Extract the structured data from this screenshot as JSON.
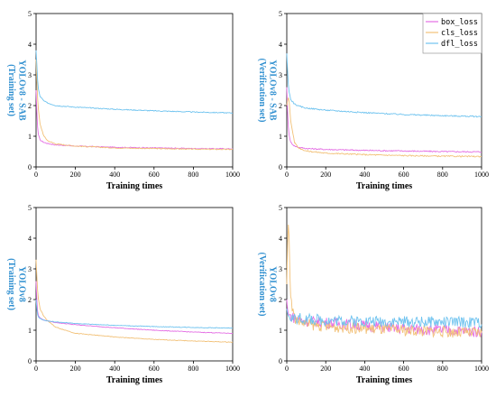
{
  "colors": {
    "box_loss": "#e46fe4",
    "cls_loss": "#f2c178",
    "dfl_loss": "#6fc3ef",
    "ylabel": "#2f8fd0"
  },
  "legend": [
    "box_loss",
    "cls_loss",
    "dfl_loss"
  ],
  "chart_data": [
    {
      "type": "line",
      "xlabel": "Training times",
      "ylabel_lines": [
        "YOLOv8 - SAB",
        "(Training set)"
      ],
      "xlim": [
        0,
        1000
      ],
      "ylim": [
        0,
        5
      ],
      "xticks": [
        0,
        200,
        400,
        600,
        800,
        1000
      ],
      "yticks": [
        0,
        1,
        2,
        3,
        4,
        5
      ],
      "noise": 0.015,
      "series": [
        {
          "name": "box_loss",
          "x": [
            0,
            5,
            10,
            20,
            40,
            60,
            100,
            200,
            400,
            600,
            800,
            1000
          ],
          "y": [
            2.5,
            1.6,
            1.1,
            0.88,
            0.8,
            0.76,
            0.72,
            0.68,
            0.64,
            0.62,
            0.6,
            0.59
          ]
        },
        {
          "name": "cls_loss",
          "x": [
            0,
            5,
            10,
            20,
            40,
            60,
            100,
            200,
            400,
            600,
            800,
            1000
          ],
          "y": [
            3.5,
            2.6,
            2.0,
            1.4,
            1.0,
            0.85,
            0.75,
            0.68,
            0.62,
            0.6,
            0.58,
            0.57
          ]
        },
        {
          "name": "dfl_loss",
          "x": [
            0,
            5,
            10,
            20,
            40,
            60,
            100,
            200,
            400,
            600,
            800,
            1000
          ],
          "y": [
            3.8,
            3.2,
            2.6,
            2.3,
            2.15,
            2.08,
            2.0,
            1.95,
            1.88,
            1.83,
            1.79,
            1.76
          ]
        }
      ]
    },
    {
      "type": "line",
      "xlabel": "Training times",
      "ylabel_lines": [
        "YOLOv8 - SAB",
        "(Verification set)"
      ],
      "xlim": [
        0,
        1000
      ],
      "ylim": [
        0,
        5
      ],
      "xticks": [
        0,
        200,
        400,
        600,
        800,
        1000
      ],
      "yticks": [
        0,
        1,
        2,
        3,
        4,
        5
      ],
      "noise": 0.02,
      "series": [
        {
          "name": "box_loss",
          "x": [
            0,
            5,
            10,
            20,
            40,
            60,
            100,
            200,
            400,
            600,
            800,
            1000
          ],
          "y": [
            2.6,
            1.6,
            1.1,
            0.8,
            0.68,
            0.64,
            0.6,
            0.57,
            0.54,
            0.52,
            0.5,
            0.49
          ]
        },
        {
          "name": "cls_loss",
          "x": [
            0,
            5,
            10,
            20,
            40,
            60,
            100,
            200,
            400,
            600,
            800,
            1000
          ],
          "y": [
            2.0,
            2.2,
            2.3,
            1.5,
            0.8,
            0.62,
            0.52,
            0.45,
            0.4,
            0.37,
            0.35,
            0.34
          ]
        },
        {
          "name": "dfl_loss",
          "x": [
            0,
            5,
            10,
            20,
            40,
            60,
            100,
            200,
            400,
            600,
            800,
            1000
          ],
          "y": [
            3.7,
            3.0,
            2.5,
            2.2,
            2.05,
            1.98,
            1.92,
            1.85,
            1.77,
            1.71,
            1.67,
            1.64
          ]
        }
      ]
    },
    {
      "type": "line",
      "xlabel": "Training times",
      "ylabel_lines": [
        "YOLOv8",
        "(Training set)"
      ],
      "xlim": [
        0,
        1000
      ],
      "ylim": [
        0,
        5
      ],
      "xticks": [
        0,
        200,
        400,
        600,
        800,
        1000
      ],
      "yticks": [
        0,
        1,
        2,
        3,
        4,
        5
      ],
      "noise": 0.01,
      "series": [
        {
          "name": "box_loss",
          "x": [
            0,
            5,
            10,
            20,
            40,
            60,
            100,
            200,
            400,
            600,
            800,
            1000
          ],
          "y": [
            2.6,
            1.8,
            1.5,
            1.4,
            1.33,
            1.3,
            1.25,
            1.18,
            1.08,
            1.0,
            0.94,
            0.9
          ]
        },
        {
          "name": "cls_loss",
          "x": [
            0,
            5,
            10,
            20,
            40,
            60,
            100,
            200,
            400,
            600,
            800,
            1000
          ],
          "y": [
            3.3,
            2.6,
            2.1,
            1.7,
            1.45,
            1.3,
            1.1,
            0.9,
            0.78,
            0.7,
            0.65,
            0.61
          ]
        },
        {
          "name": "dfl_loss",
          "x": [
            0,
            5,
            10,
            20,
            40,
            60,
            100,
            200,
            400,
            600,
            800,
            1000
          ],
          "y": [
            2.0,
            1.6,
            1.45,
            1.38,
            1.33,
            1.3,
            1.27,
            1.22,
            1.16,
            1.12,
            1.09,
            1.07
          ]
        }
      ]
    },
    {
      "type": "line",
      "xlabel": "Training times",
      "ylabel_lines": [
        "YOLOv8",
        "(Verification set)"
      ],
      "xlim": [
        0,
        1000
      ],
      "ylim": [
        0,
        5
      ],
      "xticks": [
        0,
        200,
        400,
        600,
        800,
        1000
      ],
      "yticks": [
        0,
        1,
        2,
        3,
        4,
        5
      ],
      "noise": 0.18,
      "series": [
        {
          "name": "box_loss",
          "x": [
            0,
            5,
            10,
            20,
            40,
            60,
            100,
            200,
            400,
            600,
            800,
            1000
          ],
          "y": [
            2.0,
            1.6,
            1.5,
            1.45,
            1.4,
            1.35,
            1.3,
            1.25,
            1.15,
            1.05,
            1.0,
            0.95
          ]
        },
        {
          "name": "cls_loss",
          "x": [
            0,
            5,
            10,
            15,
            20,
            40,
            60,
            100,
            200,
            400,
            600,
            800,
            1000
          ],
          "y": [
            2.5,
            4.2,
            4.6,
            3.2,
            2.0,
            1.4,
            1.3,
            1.2,
            1.12,
            1.05,
            1.0,
            0.95,
            0.9
          ]
        },
        {
          "name": "dfl_loss",
          "x": [
            0,
            5,
            10,
            20,
            40,
            60,
            100,
            200,
            400,
            600,
            800,
            1000
          ],
          "y": [
            1.7,
            1.5,
            1.45,
            1.42,
            1.4,
            1.38,
            1.36,
            1.33,
            1.3,
            1.28,
            1.27,
            1.26
          ]
        }
      ]
    }
  ]
}
